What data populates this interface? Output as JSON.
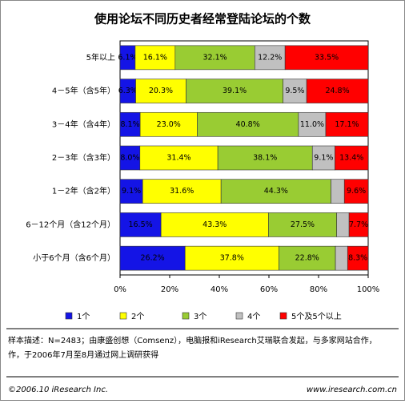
{
  "chart_data": {
    "type": "stacked-bar-horizontal",
    "title": "使用论坛不同历史者经常登陆论坛的个数",
    "categories": [
      "5年以上",
      "4－5年（含5年）",
      "3－4年（含4年）",
      "2－3年（含3年）",
      "1－2年（含2年）",
      "6－12个月（含12个月）",
      "小于6个月（含6个月）"
    ],
    "series": [
      {
        "name": "1个",
        "color": "#1414e6",
        "values": [
          6.1,
          6.3,
          8.1,
          8.0,
          9.1,
          16.5,
          26.2
        ],
        "value_labels": [
          "6.1%",
          "6.3%",
          "8.1%",
          "8.0%",
          "9.1%",
          "16.5%",
          "26.2%"
        ]
      },
      {
        "name": "2个",
        "color": "#ffff00",
        "values": [
          16.1,
          20.3,
          23.0,
          31.4,
          31.6,
          43.3,
          37.8
        ],
        "value_labels": [
          "16.1%",
          "20.3%",
          "23.0%",
          "31.4%",
          "31.6%",
          "43.3%",
          "37.8%"
        ]
      },
      {
        "name": "3个",
        "color": "#99cc33",
        "values": [
          32.1,
          39.1,
          40.8,
          38.1,
          44.3,
          27.5,
          22.8
        ],
        "value_labels": [
          "32.1%",
          "39.1%",
          "40.8%",
          "38.1%",
          "44.3%",
          "27.5%",
          "22.8%"
        ]
      },
      {
        "name": "4个",
        "color": "#c0c0c0",
        "values": [
          12.2,
          9.5,
          11.0,
          9.1,
          5.4,
          5.0,
          4.9
        ],
        "value_labels": [
          "12.2%",
          "9.5%",
          "11.0%",
          "9.1%",
          null,
          null,
          null
        ]
      },
      {
        "name": "5个及5个以上",
        "color": "#ff0000",
        "values": [
          33.5,
          24.8,
          17.1,
          13.4,
          9.6,
          7.7,
          8.3
        ],
        "value_labels": [
          "33.5%",
          "24.8%",
          "17.1%",
          "13.4%",
          "9.6%",
          "7.7%",
          "8.3%"
        ]
      }
    ],
    "xlim": [
      0,
      100
    ],
    "xticks": [
      {
        "value": 0,
        "label": "0%"
      },
      {
        "value": 20,
        "label": "20%"
      },
      {
        "value": 40,
        "label": "40%"
      },
      {
        "value": 60,
        "label": "60%"
      },
      {
        "value": 80,
        "label": "80%"
      },
      {
        "value": 100,
        "label": "100%"
      }
    ]
  },
  "notes": [
    "样本描述：N=2483；由康盛创想（Comsenz），电脑报和iResearch艾瑞联合发起，与多家网站合作，",
    "作，于2006年7月至8月通过网上调研获得"
  ],
  "footer": {
    "copyright": "©2006.10 iResearch Inc.",
    "url": "www.iresearch.com.cn"
  }
}
